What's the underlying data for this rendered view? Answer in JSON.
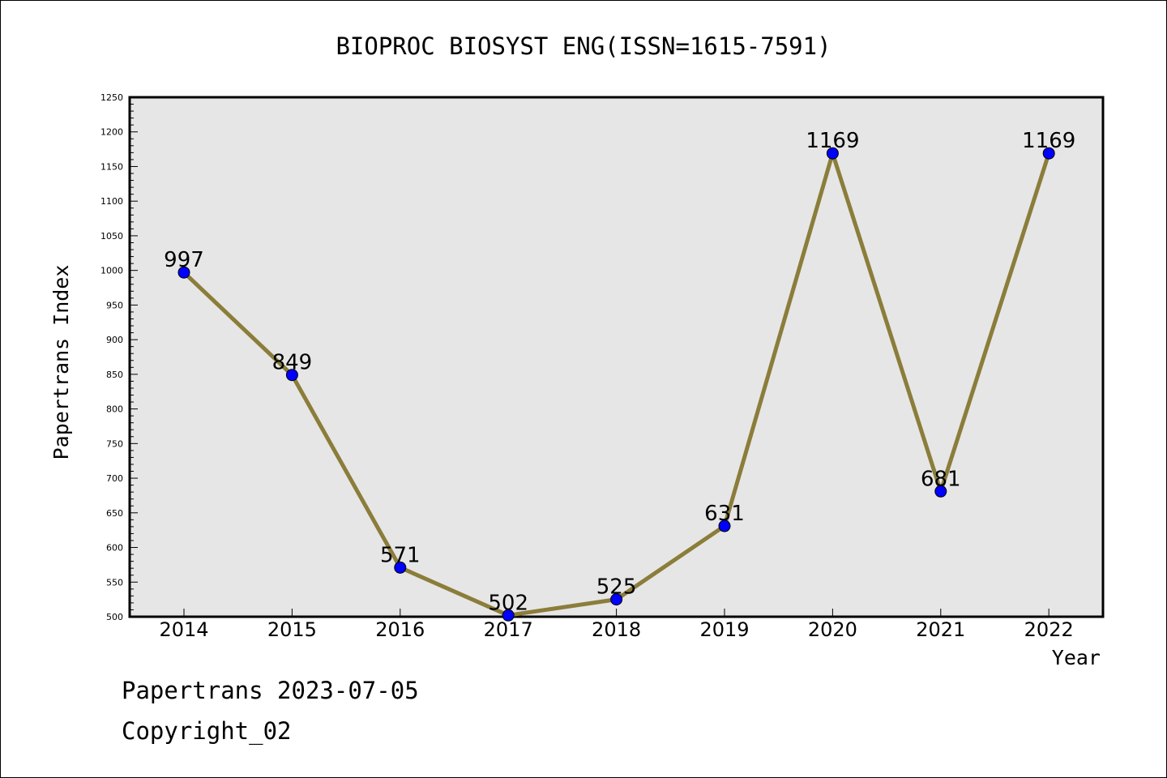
{
  "chart_data": {
    "type": "line",
    "title": "BIOPROC BIOSYST ENG(ISSN=1615-7591)",
    "xlabel": "Year",
    "ylabel": "Papertrans Index",
    "categories": [
      "2014",
      "2015",
      "2016",
      "2017",
      "2018",
      "2019",
      "2020",
      "2021",
      "2022"
    ],
    "series": [
      {
        "values": [
          997,
          849,
          571,
          502,
          525,
          631,
          1169,
          681,
          1169
        ]
      }
    ],
    "ylim": [
      500,
      1250
    ],
    "yticks": [
      500,
      550,
      600,
      650,
      700,
      750,
      800,
      850,
      900,
      950,
      1000,
      1050,
      1100,
      1150,
      1200,
      1250
    ],
    "grid": false,
    "colors": {
      "line": "#8b7d3a",
      "marker": "#0000ff",
      "plot_background": "#e6e6e6"
    }
  },
  "footer": {
    "line1": "Papertrans 2023-07-05",
    "line2": "Copyright_02"
  }
}
